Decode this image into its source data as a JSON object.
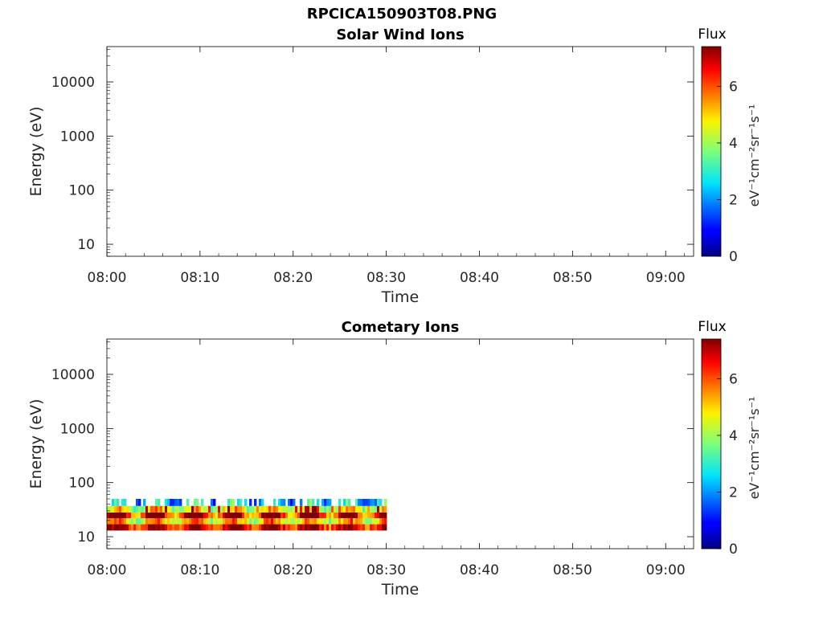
{
  "title": "RPCICA150903T08.PNG",
  "chart_data": [
    {
      "type": "heatmap",
      "title": "Solar Wind Ions",
      "xlabel": "Time",
      "ylabel": "Energy (eV)",
      "x_range": [
        "08:00",
        "09:03"
      ],
      "y_scale": "log",
      "ylim": [
        6,
        45000
      ],
      "x_ticks": [
        "08:00",
        "08:10",
        "08:20",
        "08:30",
        "08:40",
        "08:50",
        "09:00"
      ],
      "y_ticks": [
        "10",
        "100",
        "1000",
        "10000"
      ],
      "colorbar": {
        "title": "Flux",
        "label": "eV⁻¹cm⁻²sr⁻¹s⁻¹",
        "range": [
          0,
          7.4
        ],
        "ticks": [
          "0",
          "2",
          "4",
          "6"
        ],
        "colormap": "jet"
      },
      "data_extent": null,
      "bands": []
    },
    {
      "type": "heatmap",
      "title": "Cometary Ions",
      "xlabel": "Time",
      "ylabel": "Energy (eV)",
      "x_range": [
        "08:00",
        "09:03"
      ],
      "y_scale": "log",
      "ylim": [
        6,
        45000
      ],
      "x_ticks": [
        "08:00",
        "08:10",
        "08:20",
        "08:30",
        "08:40",
        "08:50",
        "09:00"
      ],
      "y_ticks": [
        "10",
        "100",
        "1000",
        "10000"
      ],
      "colorbar": {
        "title": "Flux",
        "label": "eV⁻¹cm⁻²sr⁻¹s⁻¹",
        "range": [
          0,
          7.4
        ],
        "ticks": [
          "0",
          "2",
          "4",
          "6"
        ],
        "colormap": "jet"
      },
      "data_extent": {
        "time_start": "08:00",
        "time_end": "08:30",
        "energy_min": 13,
        "energy_max": 50
      },
      "bands": [
        {
          "energy_range": [
            13,
            17
          ],
          "level": 6.8
        },
        {
          "energy_range": [
            17,
            22
          ],
          "level": 5.0
        },
        {
          "energy_range": [
            22,
            28
          ],
          "level": 6.3
        },
        {
          "energy_range": [
            28,
            37
          ],
          "level": 4.6
        },
        {
          "energy_range": [
            37,
            50
          ],
          "level": 2.4
        }
      ]
    }
  ]
}
